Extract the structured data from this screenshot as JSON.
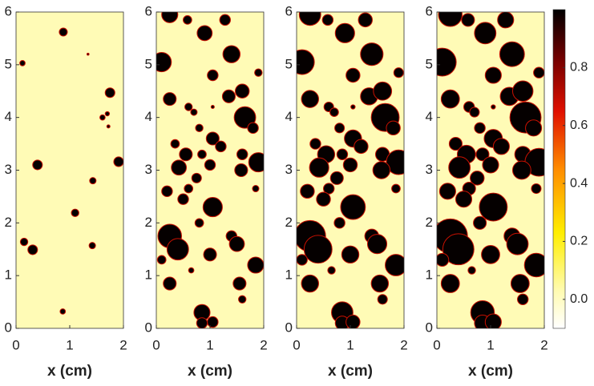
{
  "chart_data": [
    {
      "type": "scatter",
      "xlabel": "x (cm)",
      "xlim": [
        0,
        2
      ],
      "ylim": [
        0,
        6
      ],
      "xticks": [
        0,
        1,
        2
      ],
      "yticks": [
        0,
        1,
        2,
        3,
        4,
        5,
        6
      ],
      "x": [
        0.88,
        0.12,
        1.34,
        1.75,
        1.7,
        1.61,
        1.72,
        0.4,
        1.91,
        1.43,
        1.1,
        0.15,
        0.31,
        1.42,
        0.87
      ],
      "y": [
        5.62,
        5.03,
        5.2,
        4.47,
        4.07,
        4.0,
        3.83,
        3.1,
        3.16,
        2.8,
        2.19,
        1.64,
        1.49,
        1.57,
        0.32
      ],
      "size": [
        0.075,
        0.05,
        0.02,
        0.09,
        0.04,
        0.05,
        0.03,
        0.09,
        0.09,
        0.06,
        0.07,
        0.07,
        0.09,
        0.06,
        0.05
      ]
    },
    {
      "type": "scatter",
      "xlabel": "x (cm)",
      "xlim": [
        0,
        2
      ],
      "ylim": [
        0,
        6
      ],
      "xticks": [
        0,
        1,
        2
      ],
      "yticks": [
        0,
        1,
        2,
        3,
        4,
        5,
        6
      ],
      "x": [
        0.25,
        0.58,
        0.9,
        1.28,
        0.1,
        1.4,
        1.05,
        1.9,
        0.25,
        0.6,
        0.7,
        1.05,
        1.35,
        1.6,
        1.65,
        1.8,
        0.35,
        0.8,
        1.05,
        1.2,
        0.55,
        0.85,
        1.6,
        1.9,
        0.42,
        1.0,
        1.58,
        0.75,
        1.85,
        0.2,
        0.6,
        0.5,
        1.05,
        0.8,
        0.25,
        0.4,
        1.4,
        1.5,
        0.1,
        1.0,
        1.85,
        0.65,
        0.25,
        1.55,
        1.6,
        0.85,
        0.85,
        1.05
      ],
      "y": [
        5.95,
        5.85,
        5.6,
        5.85,
        5.05,
        5.2,
        4.8,
        4.85,
        4.35,
        4.2,
        4.1,
        4.2,
        4.4,
        4.5,
        4.0,
        3.8,
        3.5,
        3.8,
        3.6,
        3.45,
        3.3,
        3.3,
        3.3,
        3.15,
        3.05,
        3.1,
        3.0,
        2.85,
        2.65,
        2.6,
        2.65,
        2.45,
        2.3,
        2.0,
        1.75,
        1.5,
        1.75,
        1.6,
        1.3,
        1.4,
        1.2,
        1.1,
        0.85,
        0.85,
        0.55,
        0.3,
        0.1,
        0.12
      ],
      "size": [
        0.15,
        0.08,
        0.14,
        0.1,
        0.18,
        0.16,
        0.1,
        0.07,
        0.12,
        0.07,
        0.06,
        0.03,
        0.12,
        0.13,
        0.2,
        0.1,
        0.08,
        0.07,
        0.12,
        0.1,
        0.12,
        0.08,
        0.1,
        0.18,
        0.14,
        0.1,
        0.12,
        0.09,
        0.06,
        0.1,
        0.08,
        0.1,
        0.18,
        0.08,
        0.22,
        0.2,
        0.1,
        0.14,
        0.08,
        0.12,
        0.15,
        0.05,
        0.12,
        0.12,
        0.07,
        0.15,
        0.1,
        0.1
      ]
    },
    {
      "type": "scatter",
      "xlabel": "x (cm)",
      "xlim": [
        0,
        2
      ],
      "ylim": [
        0,
        6
      ],
      "xticks": [
        0,
        1,
        2
      ],
      "yticks": [
        0,
        1,
        2,
        3,
        4,
        5,
        6
      ],
      "x": [
        0.25,
        0.58,
        0.9,
        1.28,
        0.1,
        1.4,
        1.05,
        1.9,
        0.25,
        0.6,
        0.7,
        1.05,
        1.35,
        1.6,
        1.65,
        1.8,
        0.35,
        0.8,
        1.05,
        1.2,
        0.55,
        0.85,
        1.6,
        1.9,
        0.42,
        1.0,
        1.58,
        0.75,
        1.85,
        0.2,
        0.6,
        0.5,
        1.05,
        0.8,
        0.25,
        0.4,
        1.4,
        1.5,
        0.1,
        1.0,
        1.85,
        0.65,
        0.25,
        1.55,
        1.6,
        0.85,
        0.85,
        1.05
      ],
      "y": [
        5.95,
        5.85,
        5.6,
        5.85,
        5.05,
        5.2,
        4.8,
        4.85,
        4.35,
        4.2,
        4.1,
        4.2,
        4.4,
        4.5,
        4.0,
        3.8,
        3.5,
        3.8,
        3.6,
        3.45,
        3.3,
        3.3,
        3.3,
        3.15,
        3.05,
        3.1,
        3.0,
        2.85,
        2.65,
        2.6,
        2.65,
        2.45,
        2.3,
        2.0,
        1.75,
        1.5,
        1.75,
        1.6,
        1.3,
        1.4,
        1.2,
        1.1,
        0.85,
        0.85,
        0.55,
        0.3,
        0.1,
        0.12
      ],
      "size": [
        0.2,
        0.1,
        0.18,
        0.13,
        0.23,
        0.21,
        0.13,
        0.09,
        0.16,
        0.09,
        0.08,
        0.04,
        0.16,
        0.17,
        0.26,
        0.13,
        0.1,
        0.09,
        0.16,
        0.13,
        0.16,
        0.1,
        0.13,
        0.23,
        0.18,
        0.13,
        0.16,
        0.12,
        0.08,
        0.13,
        0.1,
        0.13,
        0.23,
        0.1,
        0.29,
        0.26,
        0.13,
        0.18,
        0.1,
        0.16,
        0.2,
        0.07,
        0.16,
        0.16,
        0.09,
        0.2,
        0.13,
        0.13
      ]
    },
    {
      "type": "scatter",
      "xlabel": "x (cm)",
      "xlim": [
        0,
        2
      ],
      "ylim": [
        0,
        6
      ],
      "xticks": [
        0,
        1,
        2
      ],
      "yticks": [
        0,
        1,
        2,
        3,
        4,
        5,
        6
      ],
      "x": [
        0.25,
        0.58,
        0.9,
        1.28,
        0.1,
        1.4,
        1.05,
        1.9,
        0.25,
        0.6,
        0.7,
        1.05,
        1.35,
        1.6,
        1.65,
        1.8,
        0.35,
        0.8,
        1.05,
        1.2,
        0.55,
        0.85,
        1.6,
        1.9,
        0.42,
        1.0,
        1.58,
        0.75,
        1.85,
        0.2,
        0.6,
        0.5,
        1.05,
        0.8,
        0.25,
        0.4,
        1.4,
        1.5,
        0.1,
        1.0,
        1.85,
        0.65,
        0.25,
        1.55,
        1.6,
        0.85,
        0.85,
        1.05
      ],
      "y": [
        5.95,
        5.85,
        5.6,
        5.85,
        5.05,
        5.2,
        4.8,
        4.85,
        4.35,
        4.2,
        4.1,
        4.2,
        4.4,
        4.5,
        4.0,
        3.8,
        3.5,
        3.8,
        3.6,
        3.45,
        3.3,
        3.3,
        3.3,
        3.15,
        3.05,
        3.1,
        3.0,
        2.85,
        2.65,
        2.6,
        2.65,
        2.45,
        2.3,
        2.0,
        1.75,
        1.5,
        1.75,
        1.6,
        1.3,
        1.4,
        1.2,
        1.1,
        0.85,
        0.85,
        0.55,
        0.3,
        0.1,
        0.12
      ],
      "size": [
        0.22,
        0.12,
        0.2,
        0.15,
        0.26,
        0.23,
        0.15,
        0.1,
        0.17,
        0.1,
        0.09,
        0.04,
        0.17,
        0.19,
        0.29,
        0.15,
        0.12,
        0.1,
        0.17,
        0.15,
        0.17,
        0.12,
        0.15,
        0.26,
        0.2,
        0.15,
        0.17,
        0.13,
        0.09,
        0.15,
        0.12,
        0.15,
        0.26,
        0.12,
        0.32,
        0.29,
        0.15,
        0.2,
        0.12,
        0.17,
        0.22,
        0.07,
        0.17,
        0.17,
        0.1,
        0.22,
        0.15,
        0.15
      ],
      "colorbar": {
        "lim": [
          -0.1,
          1
        ],
        "ticks": [
          {
            "value": 0,
            "label": "0.0"
          },
          0.2,
          0.4,
          0.6,
          0.8
        ]
      }
    }
  ]
}
